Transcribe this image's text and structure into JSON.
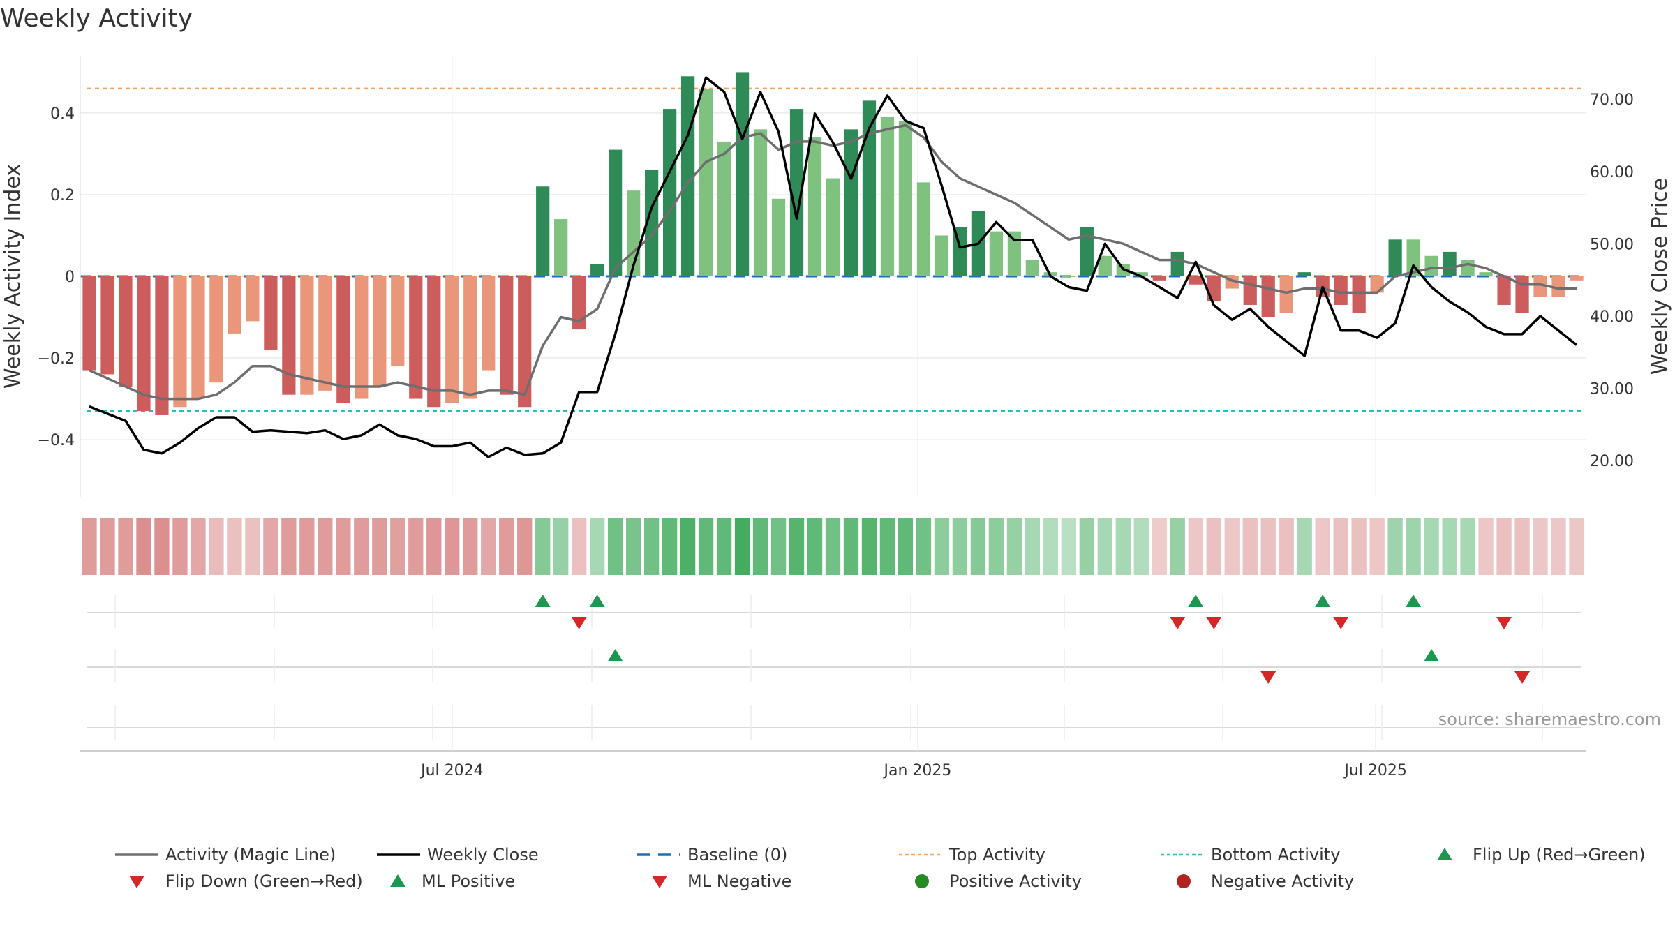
{
  "title": "Weekly Activity",
  "source": "source: sharemaestro.com",
  "colors": {
    "strong_green": "#2e8b57",
    "light_green": "#7fc17f",
    "strong_red": "#cd5c5c",
    "light_red": "#e9967a",
    "magic_line": "#6e6e6e",
    "close_line": "#000000",
    "baseline": "#1f6fb4",
    "top_line": "#f4a460",
    "bottom_line": "#20c0c0",
    "marker_up": "#1a9850",
    "marker_down": "#d62728",
    "positive_dot": "#228b22",
    "negative_dot": "#b22222"
  },
  "chart_data": {
    "type": "bar",
    "title": "Weekly Activity",
    "ylabel_left": "Weekly Activity Index",
    "ylabel_right": "Weekly Close Price",
    "ylim_left": [
      -0.54,
      0.54
    ],
    "ylim_right": [
      15.0,
      76.0
    ],
    "yticks_left": [
      {
        "value": 0.4,
        "label": "0.4"
      },
      {
        "value": 0.2,
        "label": "0.2"
      },
      {
        "value": 0,
        "label": "0"
      },
      {
        "value": -0.2,
        "label": "−0.2"
      },
      {
        "value": -0.4,
        "label": "−0.4"
      }
    ],
    "yticks_right": [
      {
        "value": 70,
        "label": "70.00"
      },
      {
        "value": 60,
        "label": "60.00"
      },
      {
        "value": 50,
        "label": "50.00"
      },
      {
        "value": 40,
        "label": "40.00"
      },
      {
        "value": 30,
        "label": "30.00"
      },
      {
        "value": 20,
        "label": "20.00"
      }
    ],
    "x_start": "2024-02-05",
    "x_end": "2025-09-22",
    "xticks": [
      {
        "date": "2024-07-01",
        "label": "Jul 2024"
      },
      {
        "date": "2025-01-01",
        "label": "Jan 2025"
      },
      {
        "date": "2025-07-01",
        "label": "Jul 2025"
      }
    ],
    "top_activity": 0.46,
    "bottom_activity": -0.33,
    "bars": [
      -0.23,
      -0.24,
      -0.27,
      -0.33,
      -0.34,
      -0.32,
      -0.3,
      -0.26,
      -0.14,
      -0.11,
      -0.18,
      -0.29,
      -0.29,
      -0.28,
      -0.31,
      -0.3,
      -0.27,
      -0.22,
      -0.3,
      -0.32,
      -0.31,
      -0.3,
      -0.23,
      -0.29,
      -0.32,
      0.22,
      0.14,
      -0.13,
      0.03,
      0.31,
      0.21,
      0.26,
      0.41,
      0.49,
      0.46,
      0.33,
      0.5,
      0.36,
      0.19,
      0.41,
      0.34,
      0.24,
      0.36,
      0.43,
      0.39,
      0.38,
      0.23,
      0.1,
      0.12,
      0.16,
      0.11,
      0.11,
      0.04,
      0.01,
      0,
      0.12,
      0.05,
      0.03,
      0.01,
      -0.01,
      0.06,
      -0.02,
      -0.06,
      -0.03,
      -0.07,
      -0.1,
      -0.09,
      0.01,
      -0.05,
      -0.07,
      -0.09,
      -0.04,
      0.09,
      0.09,
      0.05,
      0.06,
      0.04,
      0.01,
      -0.07,
      -0.09,
      -0.05,
      -0.05,
      -0.01
    ],
    "bar_strength": [
      "S",
      "S",
      "S",
      "S",
      "S",
      "L",
      "L",
      "L",
      "L",
      "L",
      "S",
      "S",
      "L",
      "L",
      "S",
      "L",
      "L",
      "L",
      "S",
      "S",
      "L",
      "L",
      "L",
      "S",
      "S",
      "S",
      "L",
      "S",
      "S",
      "S",
      "L",
      "S",
      "S",
      "S",
      "L",
      "L",
      "S",
      "L",
      "L",
      "S",
      "L",
      "L",
      "S",
      "S",
      "L",
      "L",
      "L",
      "L",
      "S",
      "S",
      "L",
      "L",
      "L",
      "L",
      "L",
      "S",
      "L",
      "L",
      "L",
      "S",
      "S",
      "S",
      "S",
      "L",
      "S",
      "S",
      "L",
      "S",
      "S",
      "S",
      "S",
      "L",
      "S",
      "L",
      "L",
      "S",
      "L",
      "L",
      "S",
      "S",
      "L",
      "L",
      "L"
    ],
    "magic_line": [
      -0.23,
      -0.25,
      -0.27,
      -0.29,
      -0.3,
      -0.3,
      -0.3,
      -0.29,
      -0.26,
      -0.22,
      -0.22,
      -0.24,
      -0.25,
      -0.26,
      -0.27,
      -0.27,
      -0.27,
      -0.26,
      -0.27,
      -0.28,
      -0.28,
      -0.29,
      -0.28,
      -0.28,
      -0.29,
      -0.17,
      -0.1,
      -0.11,
      -0.08,
      0.02,
      0.06,
      0.1,
      0.16,
      0.23,
      0.28,
      0.3,
      0.34,
      0.35,
      0.31,
      0.33,
      0.33,
      0.32,
      0.33,
      0.35,
      0.36,
      0.37,
      0.34,
      0.28,
      0.24,
      0.22,
      0.2,
      0.18,
      0.15,
      0.12,
      0.09,
      0.1,
      0.09,
      0.08,
      0.06,
      0.04,
      0.04,
      0.03,
      0.01,
      -0.01,
      -0.02,
      -0.03,
      -0.04,
      -0.03,
      -0.03,
      -0.04,
      -0.04,
      -0.04,
      0,
      0.01,
      0.02,
      0.02,
      0.03,
      0.02,
      0,
      -0.02,
      -0.02,
      -0.03,
      -0.03
    ],
    "weekly_close": [
      27.5,
      26.5,
      25.5,
      21.5,
      21,
      22.5,
      24.5,
      26,
      26,
      24,
      24.2,
      24,
      23.8,
      24.2,
      23,
      23.5,
      25,
      23.5,
      23,
      22,
      22,
      22.5,
      20.5,
      21.8,
      20.8,
      21,
      22.5,
      29.5,
      29.5,
      37.5,
      47,
      55,
      60,
      65,
      73,
      71,
      64.5,
      71,
      65.5,
      53.5,
      68,
      64,
      59,
      66,
      70.5,
      67,
      66,
      58,
      49.5,
      50,
      53,
      50.5,
      50.5,
      45.5,
      44,
      43.5,
      50,
      46.5,
      45.5,
      44,
      42.5,
      47.5,
      41.5,
      39.5,
      41,
      38.5,
      36.5,
      34.5,
      44,
      38,
      38,
      37,
      39,
      47,
      44,
      42,
      40.5,
      38.5,
      37.5,
      37.5,
      40,
      38,
      36
    ],
    "magic_line_breaks": [
      null
    ],
    "color_strip": {
      "comment_hidden": null
    },
    "strip": [
      -0.6,
      -0.6,
      -0.6,
      -0.7,
      -0.7,
      -0.6,
      -0.5,
      -0.35,
      -0.3,
      -0.3,
      -0.5,
      -0.6,
      -0.6,
      -0.6,
      -0.6,
      -0.6,
      -0.6,
      -0.55,
      -0.6,
      -0.65,
      -0.65,
      -0.6,
      -0.5,
      -0.6,
      -0.65,
      0.5,
      0.4,
      -0.3,
      0.3,
      0.6,
      0.55,
      0.6,
      0.7,
      0.8,
      0.7,
      0.7,
      0.85,
      0.7,
      0.6,
      0.75,
      0.7,
      0.6,
      0.7,
      0.75,
      0.7,
      0.7,
      0.6,
      0.45,
      0.45,
      0.5,
      0.45,
      0.4,
      0.3,
      0.25,
      0.2,
      0.4,
      0.3,
      0.3,
      0.25,
      -0.2,
      0.4,
      -0.25,
      -0.3,
      -0.25,
      -0.3,
      -0.3,
      -0.3,
      0.3,
      -0.25,
      -0.3,
      -0.3,
      -0.25,
      0.35,
      0.35,
      0.3,
      0.3,
      0.3,
      -0.25,
      -0.3,
      -0.3,
      -0.25,
      -0.25,
      -0.25
    ],
    "flip_up_markers": [
      25,
      28,
      61,
      68,
      73
    ],
    "flip_down_markers": [
      27,
      60,
      62,
      69,
      78
    ],
    "ml_positive_markers": [
      29,
      74
    ],
    "ml_negative_markers": [
      65,
      79
    ],
    "legend": [
      "Activity (Magic Line)",
      "Weekly Close",
      "Baseline (0)",
      "Top Activity",
      "Bottom Activity",
      "Flip Up (Red→Green)",
      "Flip Down (Green→Red)",
      "ML Positive",
      "ML Negative",
      "Positive Activity",
      "Negative Activity"
    ]
  }
}
